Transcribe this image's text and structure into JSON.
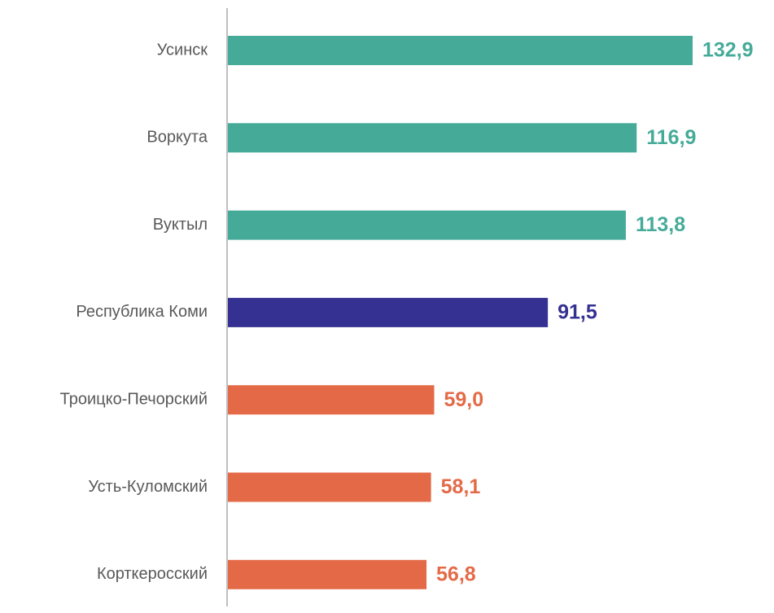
{
  "chart_data": {
    "type": "barh",
    "categories": [
      "Усинск",
      "Воркута",
      "Вуктыл",
      "Республика Коми",
      "Троицко-Печорский",
      "Усть-Куломский",
      "Корткеросский"
    ],
    "values": [
      132.9,
      116.9,
      113.8,
      91.5,
      59.0,
      58.1,
      56.8
    ],
    "value_labels": [
      "132,9",
      "116,9",
      "113,8",
      "91,5",
      "59,0",
      "58,1",
      "56,8"
    ],
    "colors": [
      "#45ab98",
      "#45ab98",
      "#45ab98",
      "#353192",
      "#e46a47",
      "#e46a47",
      "#e46a47"
    ]
  }
}
